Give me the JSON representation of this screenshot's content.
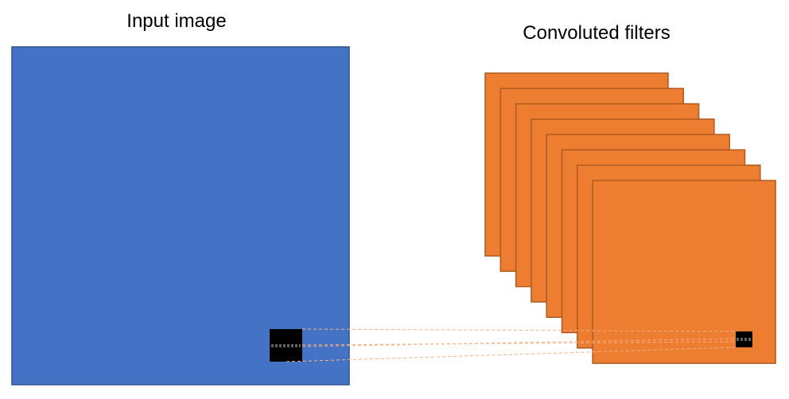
{
  "labels": {
    "input_image": "Input image",
    "convoluted_filters": "Convoluted filters"
  },
  "colors": {
    "input_fill": "#4472C4",
    "input_stroke": "#2F528F",
    "filter_fill": "#ED7D31",
    "filter_stroke": "#AE5A21",
    "kernel_fill": "#000000",
    "connector": "#F4B183"
  },
  "filter_count": 8
}
